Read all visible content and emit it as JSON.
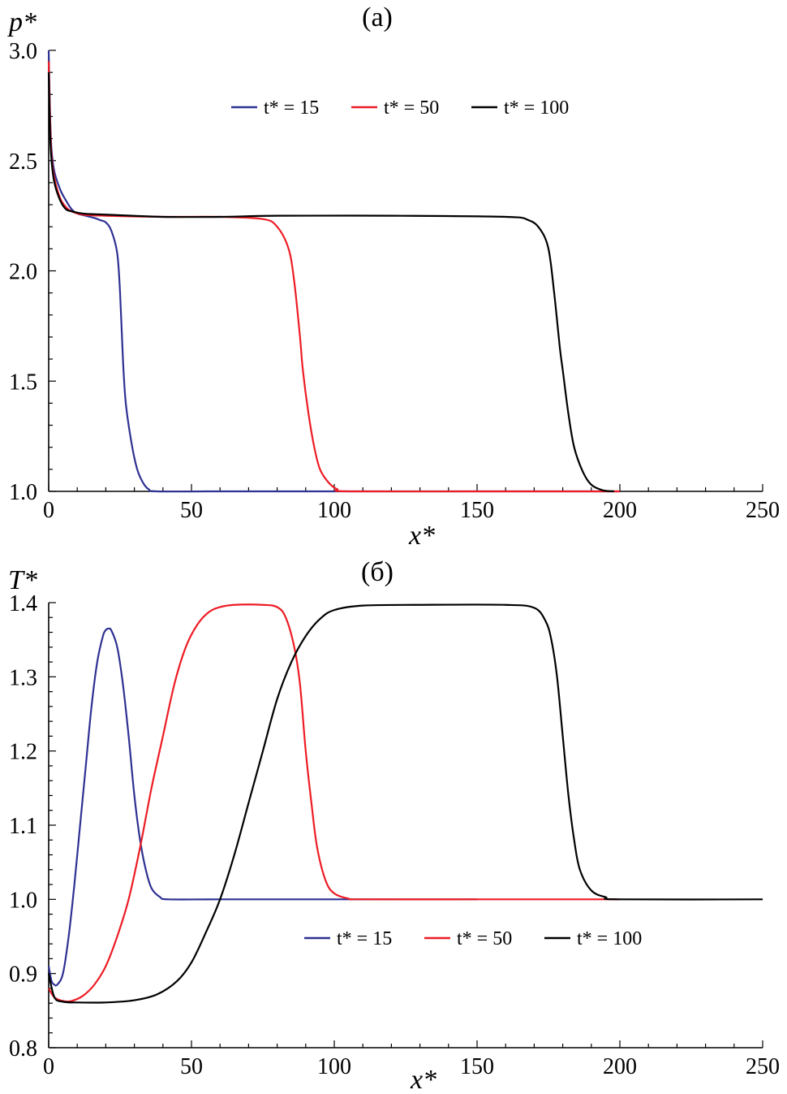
{
  "chart_data": [
    {
      "type": "line",
      "title": "(a)",
      "xlabel": "x*",
      "ylabel": "p*",
      "xlim": [
        0,
        250
      ],
      "ylim": [
        1.0,
        3.0
      ],
      "xticks": [
        0,
        50,
        100,
        150,
        200,
        250
      ],
      "xtick_labels": [
        "0",
        "50",
        "100",
        "150",
        "200",
        "250"
      ],
      "yticks": [
        1.0,
        1.5,
        2.0,
        2.5,
        3.0
      ],
      "ytick_labels": [
        "1.0",
        "1.5",
        "2.0",
        "2.5",
        "3.0"
      ],
      "grid": false,
      "legend_position": "top-center",
      "series": [
        {
          "name": "t* = 15",
          "color": "#2e3192",
          "points": [
            [
              0,
              3.0
            ],
            [
              0.5,
              2.7
            ],
            [
              1,
              2.55
            ],
            [
              2,
              2.45
            ],
            [
              4,
              2.37
            ],
            [
              6,
              2.32
            ],
            [
              8,
              2.28
            ],
            [
              10,
              2.26
            ],
            [
              13,
              2.25
            ],
            [
              16,
              2.24
            ],
            [
              18,
              2.23
            ],
            [
              20,
              2.22
            ],
            [
              22,
              2.18
            ],
            [
              24,
              2.08
            ],
            [
              25,
              1.9
            ],
            [
              26,
              1.6
            ],
            [
              27,
              1.4
            ],
            [
              29,
              1.22
            ],
            [
              31,
              1.1
            ],
            [
              33,
              1.04
            ],
            [
              35,
              1.01
            ],
            [
              38,
              1.0
            ],
            [
              60,
              1.0
            ],
            [
              100,
              1.0
            ],
            [
              150,
              1.0
            ],
            [
              200,
              1.0
            ]
          ]
        },
        {
          "name": "t* = 50",
          "color": "#ed1c24",
          "points": [
            [
              0,
              2.95
            ],
            [
              0.5,
              2.68
            ],
            [
              1,
              2.52
            ],
            [
              2,
              2.42
            ],
            [
              4,
              2.33
            ],
            [
              6,
              2.29
            ],
            [
              8,
              2.27
            ],
            [
              12,
              2.255
            ],
            [
              20,
              2.25
            ],
            [
              40,
              2.245
            ],
            [
              60,
              2.245
            ],
            [
              75,
              2.235
            ],
            [
              80,
              2.2
            ],
            [
              84,
              2.1
            ],
            [
              86,
              1.95
            ],
            [
              88,
              1.7
            ],
            [
              89,
              1.55
            ],
            [
              91,
              1.35
            ],
            [
              93,
              1.2
            ],
            [
              95,
              1.1
            ],
            [
              98,
              1.04
            ],
            [
              101,
              1.01
            ],
            [
              105,
              1.0
            ],
            [
              150,
              1.0
            ],
            [
              200,
              1.0
            ]
          ]
        },
        {
          "name": "t* = 100",
          "color": "#000000",
          "points": [
            [
              0,
              2.9
            ],
            [
              0.5,
              2.62
            ],
            [
              1,
              2.5
            ],
            [
              2,
              2.4
            ],
            [
              4,
              2.32
            ],
            [
              6,
              2.28
            ],
            [
              8,
              2.27
            ],
            [
              12,
              2.26
            ],
            [
              20,
              2.255
            ],
            [
              40,
              2.245
            ],
            [
              60,
              2.245
            ],
            [
              80,
              2.25
            ],
            [
              120,
              2.25
            ],
            [
              160,
              2.245
            ],
            [
              168,
              2.23
            ],
            [
              172,
              2.19
            ],
            [
              175,
              2.1
            ],
            [
              177,
              1.9
            ],
            [
              179,
              1.65
            ],
            [
              180,
              1.55
            ],
            [
              182,
              1.35
            ],
            [
              184,
              1.2
            ],
            [
              187,
              1.09
            ],
            [
              190,
              1.03
            ],
            [
              194,
              1.005
            ],
            [
              198,
              1.0
            ]
          ]
        }
      ]
    },
    {
      "type": "line",
      "title": "(б)",
      "xlabel": "x*",
      "ylabel": "T*",
      "xlim": [
        0,
        250
      ],
      "ylim": [
        0.8,
        1.4
      ],
      "xticks": [
        0,
        50,
        100,
        150,
        200,
        250
      ],
      "xtick_labels": [
        "0",
        "50",
        "100",
        "150",
        "200",
        "250"
      ],
      "yticks": [
        0.8,
        0.9,
        1.0,
        1.1,
        1.2,
        1.3,
        1.4
      ],
      "ytick_labels": [
        "0.8",
        "0.9",
        "1.0",
        "1.1",
        "1.2",
        "1.3",
        "1.4"
      ],
      "grid": false,
      "legend_position": "lower-right",
      "series": [
        {
          "name": "t* = 15",
          "color": "#2e3192",
          "points": [
            [
              0,
              0.91
            ],
            [
              1,
              0.89
            ],
            [
              2,
              0.885
            ],
            [
              3,
              0.885
            ],
            [
              5,
              0.9
            ],
            [
              7,
              0.95
            ],
            [
              9,
              1.02
            ],
            [
              11,
              1.1
            ],
            [
              13,
              1.18
            ],
            [
              15,
              1.26
            ],
            [
              17,
              1.32
            ],
            [
              19,
              1.355
            ],
            [
              20,
              1.363
            ],
            [
              21,
              1.365
            ],
            [
              22,
              1.362
            ],
            [
              24,
              1.34
            ],
            [
              26,
              1.29
            ],
            [
              28,
              1.22
            ],
            [
              30,
              1.14
            ],
            [
              32,
              1.08
            ],
            [
              34,
              1.04
            ],
            [
              36,
              1.015
            ],
            [
              39,
              1.003
            ],
            [
              42,
              1.0
            ],
            [
              60,
              1.0
            ],
            [
              100,
              1.0
            ],
            [
              150,
              1.0
            ]
          ]
        },
        {
          "name": "t* = 50",
          "color": "#ed1c24",
          "points": [
            [
              0,
              0.88
            ],
            [
              2,
              0.868
            ],
            [
              5,
              0.863
            ],
            [
              8,
              0.863
            ],
            [
              12,
              0.87
            ],
            [
              16,
              0.885
            ],
            [
              20,
              0.91
            ],
            [
              24,
              0.95
            ],
            [
              28,
              1.0
            ],
            [
              32,
              1.07
            ],
            [
              36,
              1.15
            ],
            [
              40,
              1.22
            ],
            [
              44,
              1.29
            ],
            [
              48,
              1.34
            ],
            [
              52,
              1.37
            ],
            [
              56,
              1.387
            ],
            [
              60,
              1.394
            ],
            [
              65,
              1.397
            ],
            [
              75,
              1.397
            ],
            [
              80,
              1.394
            ],
            [
              83,
              1.38
            ],
            [
              86,
              1.34
            ],
            [
              88,
              1.29
            ],
            [
              90,
              1.2
            ],
            [
              92,
              1.13
            ],
            [
              94,
              1.07
            ],
            [
              97,
              1.025
            ],
            [
              100,
              1.008
            ],
            [
              105,
              1.001
            ],
            [
              110,
              1.0
            ],
            [
              150,
              1.0
            ],
            [
              200,
              1.0
            ]
          ]
        },
        {
          "name": "t* = 100",
          "color": "#000000",
          "points": [
            [
              0,
              0.9
            ],
            [
              2,
              0.868
            ],
            [
              5,
              0.862
            ],
            [
              10,
              0.861
            ],
            [
              20,
              0.861
            ],
            [
              30,
              0.864
            ],
            [
              38,
              0.872
            ],
            [
              45,
              0.89
            ],
            [
              50,
              0.915
            ],
            [
              55,
              0.955
            ],
            [
              60,
              1.0
            ],
            [
              65,
              1.06
            ],
            [
              70,
              1.13
            ],
            [
              75,
              1.2
            ],
            [
              80,
              1.27
            ],
            [
              85,
              1.32
            ],
            [
              90,
              1.355
            ],
            [
              95,
              1.378
            ],
            [
              100,
              1.39
            ],
            [
              110,
              1.396
            ],
            [
              130,
              1.397
            ],
            [
              160,
              1.397
            ],
            [
              170,
              1.393
            ],
            [
              174,
              1.375
            ],
            [
              176,
              1.35
            ],
            [
              178,
              1.3
            ],
            [
              180,
              1.22
            ],
            [
              182,
              1.14
            ],
            [
              184,
              1.08
            ],
            [
              186,
              1.04
            ],
            [
              190,
              1.012
            ],
            [
              195,
              1.003
            ],
            [
              200,
              1.0
            ],
            [
              250,
              1.0
            ]
          ]
        }
      ]
    }
  ]
}
